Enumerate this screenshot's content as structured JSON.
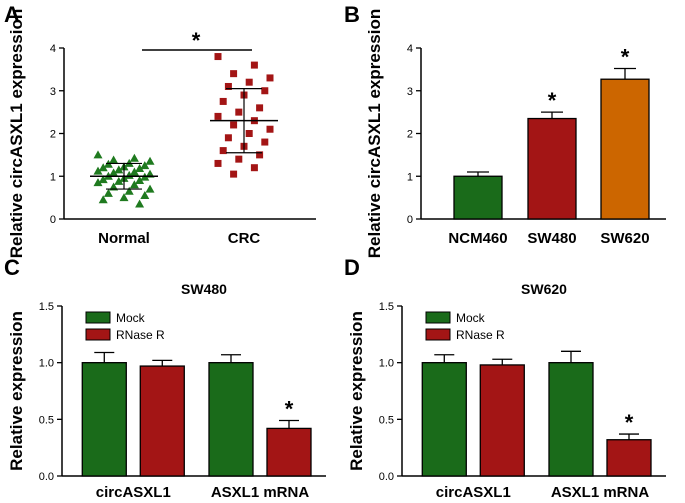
{
  "figure": {
    "panels": [
      {
        "label": "A"
      },
      {
        "label": "B"
      },
      {
        "label": "C"
      },
      {
        "label": "D"
      }
    ]
  },
  "chart_data": [
    {
      "panel": "A",
      "type": "scatter",
      "title": "",
      "xlabel": "",
      "ylabel": "Relative circASXL1 expression",
      "ylim": [
        0,
        4
      ],
      "yticks": [
        0,
        1,
        2,
        3,
        4
      ],
      "categories": [
        "Normal",
        "CRC"
      ],
      "colors": [
        "#1f7a1f",
        "#a31515"
      ],
      "groups": [
        {
          "name": "Normal",
          "mean": 1.0,
          "sd": 0.3,
          "values": [
            1.5,
            1.42,
            1.38,
            1.35,
            1.3,
            1.28,
            1.25,
            1.22,
            1.2,
            1.18,
            1.15,
            1.12,
            1.1,
            1.08,
            1.05,
            1.02,
            1.0,
            0.98,
            0.95,
            0.92,
            0.9,
            0.88,
            0.85,
            0.8,
            0.75,
            0.7,
            0.65,
            0.6,
            0.55,
            0.5,
            0.45,
            0.35
          ]
        },
        {
          "name": "CRC",
          "mean": 2.3,
          "sd": 0.75,
          "values": [
            3.8,
            3.6,
            3.4,
            3.3,
            3.2,
            3.1,
            3.0,
            2.9,
            2.75,
            2.6,
            2.5,
            2.4,
            2.3,
            2.2,
            2.1,
            2.0,
            1.9,
            1.8,
            1.7,
            1.6,
            1.5,
            1.4,
            1.3,
            1.2,
            1.05
          ]
        }
      ],
      "significance": {
        "between": [
          "Normal",
          "CRC"
        ],
        "marker": "*"
      }
    },
    {
      "panel": "B",
      "type": "bar",
      "title": "",
      "xlabel": "",
      "ylabel": "Relative circASXL1 expression",
      "ylim": [
        0,
        4
      ],
      "yticks": [
        0,
        1,
        2,
        3,
        4
      ],
      "categories": [
        "NCM460",
        "SW480",
        "SW620"
      ],
      "values": [
        1.0,
        2.35,
        3.27
      ],
      "errors": [
        0.1,
        0.15,
        0.25
      ],
      "colors": [
        "#1a6b1a",
        "#a31515",
        "#cc6600"
      ],
      "significance": [
        false,
        true,
        true
      ],
      "marker": "*"
    },
    {
      "panel": "C",
      "type": "bar",
      "title": "SW480",
      "xlabel": "",
      "ylabel": "Relative expression",
      "ylim": [
        0,
        1.5
      ],
      "yticks": [
        "0.0",
        "0.5",
        "1.0",
        "1.5"
      ],
      "categories": [
        "circASXL1",
        "ASXL1 mRNA"
      ],
      "series": [
        {
          "name": "Mock",
          "values": [
            1.0,
            1.0
          ],
          "errors": [
            0.09,
            0.07
          ],
          "color": "#1a6b1a"
        },
        {
          "name": "RNase R",
          "values": [
            0.97,
            0.42
          ],
          "errors": [
            0.05,
            0.07
          ],
          "color": "#a31515"
        }
      ],
      "significance": [
        [
          false,
          false
        ],
        [
          false,
          true
        ]
      ],
      "marker": "*",
      "legend_position": "top-left"
    },
    {
      "panel": "D",
      "type": "bar",
      "title": "SW620",
      "xlabel": "",
      "ylabel": "Relative expression",
      "ylim": [
        0,
        1.5
      ],
      "yticks": [
        "0.0",
        "0.5",
        "1.0",
        "1.5"
      ],
      "categories": [
        "circASXL1",
        "ASXL1 mRNA"
      ],
      "series": [
        {
          "name": "Mock",
          "values": [
            1.0,
            1.0
          ],
          "errors": [
            0.07,
            0.1
          ],
          "color": "#1a6b1a"
        },
        {
          "name": "RNase R",
          "values": [
            0.98,
            0.32
          ],
          "errors": [
            0.05,
            0.05
          ],
          "color": "#a31515"
        }
      ],
      "significance": [
        [
          false,
          false
        ],
        [
          false,
          true
        ]
      ],
      "marker": "*",
      "legend_position": "top-left"
    }
  ]
}
